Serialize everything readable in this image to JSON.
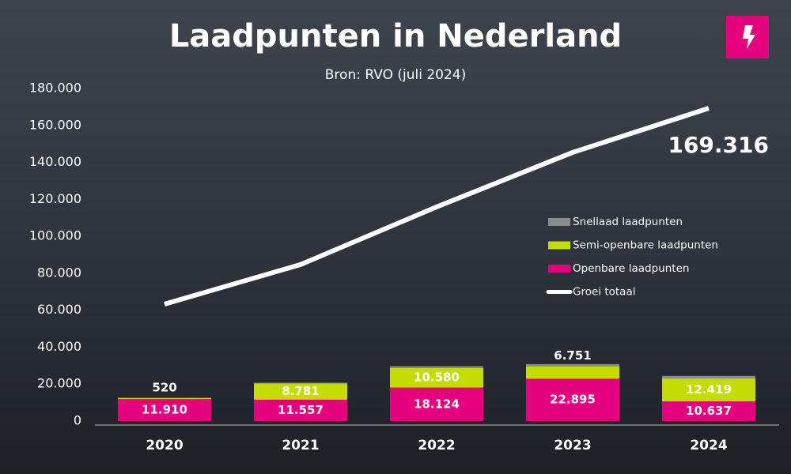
{
  "chart_data": {
    "type": "bar",
    "title": "Laadpunten in Nederland",
    "subtitle": "Bron: RVO (juli 2024)",
    "stacked": true,
    "categories": [
      "2020",
      "2021",
      "2022",
      "2023",
      "2024"
    ],
    "series": [
      {
        "name": "Openbare laadpunten",
        "color": "#e5007e",
        "values": [
          11910,
          11557,
          18124,
          22895,
          10637
        ],
        "value_labels": [
          "11.910",
          "11.557",
          "18.124",
          "22.895",
          "10.637"
        ]
      },
      {
        "name": "Semi-openbare laadpunten",
        "color": "#c4dc00",
        "values": [
          520,
          8781,
          10580,
          6751,
          12419
        ],
        "value_labels": [
          "520",
          "8.781",
          "10.580",
          "6.751",
          "12.419"
        ]
      },
      {
        "name": "Snellaad laadpunten",
        "color": "#8a8a8a",
        "values": [
          200,
          400,
          1000,
          1200,
          1400
        ]
      },
      {
        "name": "Groei totaal",
        "type": "line",
        "color": "#ffffff",
        "values": [
          63300,
          84700,
          115900,
          145400,
          169316
        ],
        "value_labels": [
          null,
          null,
          null,
          null,
          "169.316"
        ]
      }
    ],
    "ylim": [
      0,
      180000
    ],
    "yticks": [
      0,
      {
        "value": 20000,
        "label": "20.000"
      },
      {
        "value": 40000,
        "label": "40.000"
      },
      {
        "value": 60000,
        "label": "60.000"
      },
      {
        "value": 80000,
        "label": "80.000"
      },
      {
        "value": 100000,
        "label": "100.000"
      },
      {
        "value": 120000,
        "label": "120.000"
      },
      {
        "value": 140000,
        "label": "140.000"
      },
      {
        "value": 160000,
        "label": "160.000"
      },
      {
        "value": 180000,
        "label": "180.000"
      }
    ],
    "grid": false,
    "legend": "right"
  }
}
